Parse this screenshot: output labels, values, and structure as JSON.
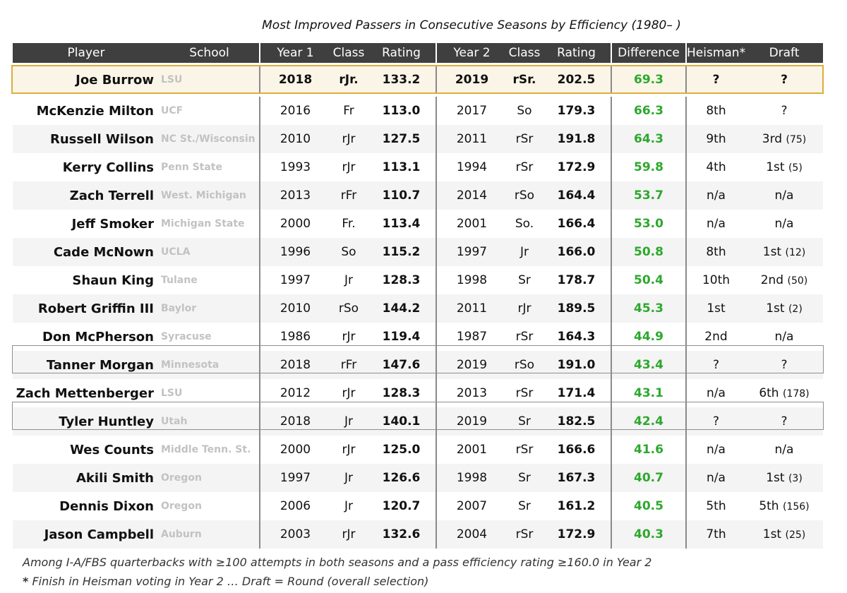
{
  "title": "Most Improved Passers in Consecutive Seasons by Efficiency (1980– )",
  "chart_data": {
    "type": "table",
    "columns": [
      "Player",
      "School",
      "Year 1",
      "Class",
      "Rating",
      "Year 2",
      "Class",
      "Rating",
      "Difference",
      "Heisman*",
      "Draft"
    ],
    "highlight": {
      "player": "Joe Burrow",
      "school": "LSU",
      "y1": "2018",
      "c1": "rJr.",
      "r1": "133.2",
      "y2": "2019",
      "c2": "rSr.",
      "r2": "202.5",
      "diff": "69.3",
      "heisman": "?",
      "draft": "?",
      "draft_overall": ""
    },
    "rows": [
      {
        "player": "McKenzie Milton",
        "school": "UCF",
        "y1": "2016",
        "c1": "Fr",
        "r1": "113.0",
        "y2": "2017",
        "c2": "So",
        "r2": "179.3",
        "diff": "66.3",
        "heisman": "8th",
        "draft": "?",
        "draft_overall": ""
      },
      {
        "player": "Russell Wilson",
        "school": "NC St./Wisconsin",
        "y1": "2010",
        "c1": "rJr",
        "r1": "127.5",
        "y2": "2011",
        "c2": "rSr",
        "r2": "191.8",
        "diff": "64.3",
        "heisman": "9th",
        "draft": "3rd",
        "draft_overall": "(75)"
      },
      {
        "player": "Kerry Collins",
        "school": "Penn State",
        "y1": "1993",
        "c1": "rJr",
        "r1": "113.1",
        "y2": "1994",
        "c2": "rSr",
        "r2": "172.9",
        "diff": "59.8",
        "heisman": "4th",
        "draft": "1st",
        "draft_overall": "(5)"
      },
      {
        "player": "Zach Terrell",
        "school": "West. Michigan",
        "y1": "2013",
        "c1": "rFr",
        "r1": "110.7",
        "y2": "2014",
        "c2": "rSo",
        "r2": "164.4",
        "diff": "53.7",
        "heisman": "n/a",
        "draft": "n/a",
        "draft_overall": ""
      },
      {
        "player": "Jeff Smoker",
        "school": "Michigan State",
        "y1": "2000",
        "c1": "Fr.",
        "r1": "113.4",
        "y2": "2001",
        "c2": "So.",
        "r2": "166.4",
        "diff": "53.0",
        "heisman": "n/a",
        "draft": "n/a",
        "draft_overall": ""
      },
      {
        "player": "Cade McNown",
        "school": "UCLA",
        "y1": "1996",
        "c1": "So",
        "r1": "115.2",
        "y2": "1997",
        "c2": "Jr",
        "r2": "166.0",
        "diff": "50.8",
        "heisman": "8th",
        "draft": "1st",
        "draft_overall": "(12)"
      },
      {
        "player": "Shaun King",
        "school": "Tulane",
        "y1": "1997",
        "c1": "Jr",
        "r1": "128.3",
        "y2": "1998",
        "c2": "Sr",
        "r2": "178.7",
        "diff": "50.4",
        "heisman": "10th",
        "draft": "2nd",
        "draft_overall": "(50)"
      },
      {
        "player": "Robert Griffin III",
        "school": "Baylor",
        "y1": "2010",
        "c1": "rSo",
        "r1": "144.2",
        "y2": "2011",
        "c2": "rJr",
        "r2": "189.5",
        "diff": "45.3",
        "heisman": "1st",
        "draft": "1st",
        "draft_overall": "(2)"
      },
      {
        "player": "Don McPherson",
        "school": "Syracuse",
        "y1": "1986",
        "c1": "rJr",
        "r1": "119.4",
        "y2": "1987",
        "c2": "rSr",
        "r2": "164.3",
        "diff": "44.9",
        "heisman": "2nd",
        "draft": "n/a",
        "draft_overall": ""
      },
      {
        "player": "Tanner Morgan",
        "school": "Minnesota",
        "y1": "2018",
        "c1": "rFr",
        "r1": "147.6",
        "y2": "2019",
        "c2": "rSo",
        "r2": "191.0",
        "diff": "43.4",
        "heisman": "?",
        "draft": "?",
        "draft_overall": ""
      },
      {
        "player": "Zach Mettenberger",
        "school": "LSU",
        "y1": "2012",
        "c1": "rJr",
        "r1": "128.3",
        "y2": "2013",
        "c2": "rSr",
        "r2": "171.4",
        "diff": "43.1",
        "heisman": "n/a",
        "draft": "6th",
        "draft_overall": "(178)"
      },
      {
        "player": "Tyler Huntley",
        "school": "Utah",
        "y1": "2018",
        "c1": "Jr",
        "r1": "140.1",
        "y2": "2019",
        "c2": "Sr",
        "r2": "182.5",
        "diff": "42.4",
        "heisman": "?",
        "draft": "?",
        "draft_overall": ""
      },
      {
        "player": "Wes Counts",
        "school": "Middle Tenn. St.",
        "y1": "2000",
        "c1": "rJr",
        "r1": "125.0",
        "y2": "2001",
        "c2": "rSr",
        "r2": "166.6",
        "diff": "41.6",
        "heisman": "n/a",
        "draft": "n/a",
        "draft_overall": ""
      },
      {
        "player": "Akili Smith",
        "school": "Oregon",
        "y1": "1997",
        "c1": "Jr",
        "r1": "126.6",
        "y2": "1998",
        "c2": "Sr",
        "r2": "167.3",
        "diff": "40.7",
        "heisman": "n/a",
        "draft": "1st",
        "draft_overall": "(3)"
      },
      {
        "player": "Dennis Dixon",
        "school": "Oregon",
        "y1": "2006",
        "c1": "Jr",
        "r1": "120.7",
        "y2": "2007",
        "c2": "Sr",
        "r2": "161.2",
        "diff": "40.5",
        "heisman": "5th",
        "draft": "5th",
        "draft_overall": "(156)"
      },
      {
        "player": "Jason Campbell",
        "school": "Auburn",
        "y1": "2003",
        "c1": "rJr",
        "r1": "132.6",
        "y2": "2004",
        "c2": "rSr",
        "r2": "172.9",
        "diff": "40.3",
        "heisman": "7th",
        "draft": "1st",
        "draft_overall": "(25)"
      }
    ]
  },
  "footnotes": {
    "line1": "Among I-A/FBS quarterbacks with ≥100 attempts in both seasons and a pass efficiency rating ≥160.0 in Year 2",
    "line2_star": "*",
    "line2": " Finish in Heisman voting in Year 2 … Draft = Round (overall selection)"
  },
  "colors": {
    "header_bg": "#3f3f3f",
    "highlight_border": "#dcae3b",
    "difference": "#2da82d",
    "school": "#c2c2c2"
  }
}
